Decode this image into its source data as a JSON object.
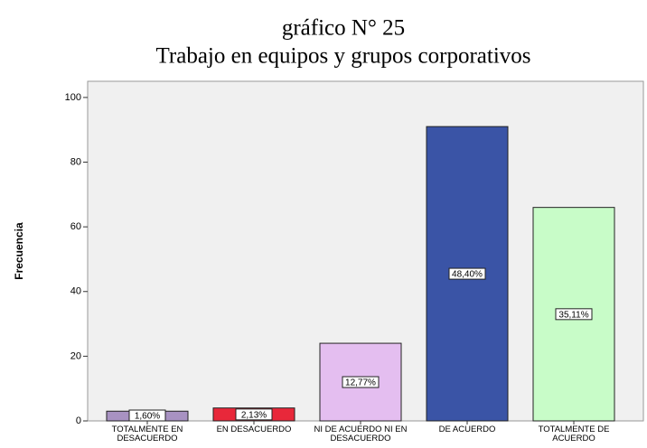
{
  "chart_data": {
    "type": "bar",
    "title": "gráfico N° 25",
    "subtitle": "Trabajo en equipos y grupos corporativos",
    "y_label": "Frecuencia",
    "categories": [
      "TOTALMENTE EN DESACUERDO",
      "EN DESACUERDO",
      "NI DE ACUERDO NI EN DESACUERDO",
      "DE ACUERDO",
      "TOTALMENTE DE ACUERDO"
    ],
    "values": [
      3,
      4,
      24,
      91,
      66
    ],
    "percentages": [
      1.6,
      2.13,
      12.77,
      48.4,
      35.11
    ],
    "percentage_labels": [
      "1,60%",
      "2,13%",
      "12,77%",
      "48,40%",
      "35,11%"
    ],
    "colors": [
      "#a892c2",
      "#e8283a",
      "#e4bef0",
      "#3a54a6",
      "#c8fcc8"
    ],
    "ylim": [
      0,
      105
    ],
    "yticks": [
      0,
      20,
      40,
      60,
      80,
      100
    ],
    "grid": false
  }
}
